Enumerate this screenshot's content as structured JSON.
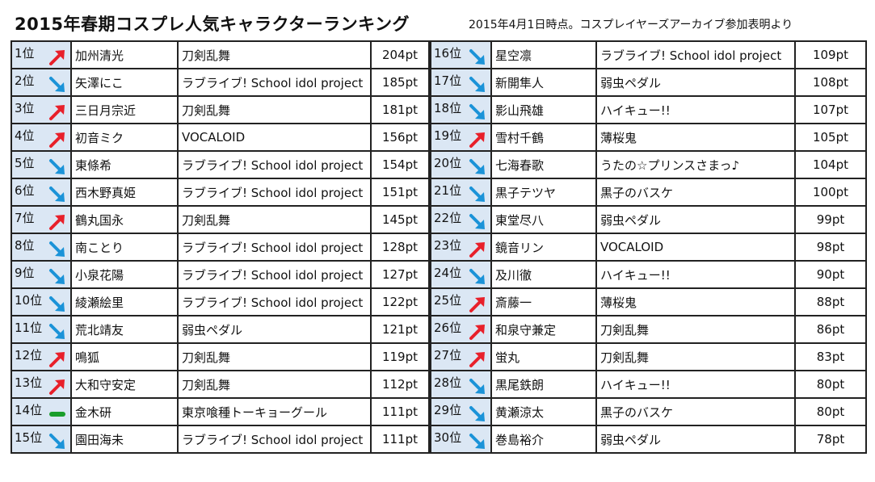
{
  "title": "2015年春期コスプレ人気キャラクターランキング",
  "subtitle": "2015年4月1日時点。コスプレイヤーズアーカイブ参加表明より",
  "colors": {
    "up": "#e8202a",
    "down": "#1b93d8",
    "same": "#1a9e2b",
    "rank_bg": "#dbe7f4"
  },
  "rows": [
    {
      "rank": "1位",
      "trend": "up",
      "name": "加州清光",
      "series": "刀剣乱舞",
      "points": "204pt"
    },
    {
      "rank": "2位",
      "trend": "down",
      "name": "矢澤にこ",
      "series": "ラブライブ! School idol project",
      "points": "185pt"
    },
    {
      "rank": "3位",
      "trend": "up",
      "name": "三日月宗近",
      "series": "刀剣乱舞",
      "points": "181pt"
    },
    {
      "rank": "4位",
      "trend": "up",
      "name": "初音ミク",
      "series": "VOCALOID",
      "points": "156pt"
    },
    {
      "rank": "5位",
      "trend": "down",
      "name": "東條希",
      "series": "ラブライブ! School idol project",
      "points": "154pt"
    },
    {
      "rank": "6位",
      "trend": "down",
      "name": "西木野真姫",
      "series": "ラブライブ! School idol project",
      "points": "151pt"
    },
    {
      "rank": "7位",
      "trend": "up",
      "name": "鶴丸国永",
      "series": "刀剣乱舞",
      "points": "145pt"
    },
    {
      "rank": "8位",
      "trend": "down",
      "name": "南ことり",
      "series": "ラブライブ! School idol project",
      "points": "128pt"
    },
    {
      "rank": "9位",
      "trend": "down",
      "name": "小泉花陽",
      "series": "ラブライブ! School idol project",
      "points": "127pt"
    },
    {
      "rank": "10位",
      "trend": "down",
      "name": "綾瀬絵里",
      "series": "ラブライブ! School idol project",
      "points": "122pt"
    },
    {
      "rank": "11位",
      "trend": "down",
      "name": "荒北靖友",
      "series": "弱虫ペダル",
      "points": "121pt"
    },
    {
      "rank": "12位",
      "trend": "up",
      "name": "鳴狐",
      "series": "刀剣乱舞",
      "points": "119pt"
    },
    {
      "rank": "13位",
      "trend": "up",
      "name": "大和守安定",
      "series": "刀剣乱舞",
      "points": "112pt"
    },
    {
      "rank": "14位",
      "trend": "same",
      "name": "金木研",
      "series": "東京喰種トーキョーグール",
      "points": "111pt"
    },
    {
      "rank": "15位",
      "trend": "down",
      "name": "園田海未",
      "series": "ラブライブ! School idol project",
      "points": "111pt"
    },
    {
      "rank": "16位",
      "trend": "down",
      "name": "星空凛",
      "series": "ラブライブ! School idol project",
      "points": "109pt"
    },
    {
      "rank": "17位",
      "trend": "down",
      "name": "新開隼人",
      "series": "弱虫ペダル",
      "points": "108pt"
    },
    {
      "rank": "18位",
      "trend": "down",
      "name": "影山飛雄",
      "series": "ハイキュー!!",
      "points": "107pt"
    },
    {
      "rank": "19位",
      "trend": "up",
      "name": "雪村千鶴",
      "series": "薄桜鬼",
      "points": "105pt"
    },
    {
      "rank": "20位",
      "trend": "down",
      "name": "七海春歌",
      "series": "うたの☆プリンスさまっ♪",
      "points": "104pt"
    },
    {
      "rank": "21位",
      "trend": "down",
      "name": "黒子テツヤ",
      "series": "黒子のバスケ",
      "points": "100pt"
    },
    {
      "rank": "22位",
      "trend": "down",
      "name": "東堂尽八",
      "series": "弱虫ペダル",
      "points": "99pt"
    },
    {
      "rank": "23位",
      "trend": "up",
      "name": "鏡音リン",
      "series": "VOCALOID",
      "points": "98pt"
    },
    {
      "rank": "24位",
      "trend": "down",
      "name": "及川徹",
      "series": "ハイキュー!!",
      "points": "90pt"
    },
    {
      "rank": "25位",
      "trend": "up",
      "name": "斎藤一",
      "series": "薄桜鬼",
      "points": "88pt"
    },
    {
      "rank": "26位",
      "trend": "up",
      "name": "和泉守兼定",
      "series": "刀剣乱舞",
      "points": "86pt"
    },
    {
      "rank": "27位",
      "trend": "up",
      "name": "蛍丸",
      "series": "刀剣乱舞",
      "points": "83pt"
    },
    {
      "rank": "28位",
      "trend": "down",
      "name": "黒尾鉄朗",
      "series": "ハイキュー!!",
      "points": "80pt"
    },
    {
      "rank": "29位",
      "trend": "down",
      "name": "黄瀬涼太",
      "series": "黒子のバスケ",
      "points": "80pt"
    },
    {
      "rank": "30位",
      "trend": "down",
      "name": "巻島裕介",
      "series": "弱虫ペダル",
      "points": "78pt"
    }
  ]
}
